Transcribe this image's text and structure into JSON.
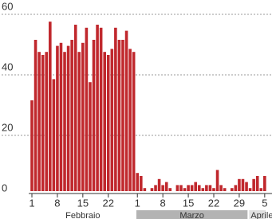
{
  "chart_data": {
    "type": "bar",
    "categories": [
      "1",
      null,
      null,
      null,
      null,
      null,
      null,
      "8",
      null,
      null,
      null,
      null,
      null,
      null,
      "15",
      null,
      null,
      null,
      null,
      null,
      null,
      "22",
      null,
      null,
      null,
      null,
      null,
      null,
      null,
      "1",
      null,
      null,
      null,
      null,
      null,
      null,
      "8",
      null,
      null,
      null,
      null,
      null,
      null,
      "15",
      null,
      null,
      null,
      null,
      null,
      null,
      "22",
      null,
      null,
      null,
      null,
      null,
      null,
      "29",
      null,
      null,
      null,
      null,
      null,
      null,
      "5"
    ],
    "values": [
      30,
      50,
      46,
      45,
      46,
      56,
      37,
      48,
      49,
      46,
      48,
      50,
      55,
      46,
      49,
      54,
      36,
      50,
      55,
      54,
      46,
      45,
      47,
      54,
      50,
      50,
      53,
      47,
      46,
      6,
      5,
      1,
      0,
      1,
      2,
      4,
      2,
      3,
      1,
      0,
      2,
      2,
      1,
      2,
      2,
      3,
      2,
      1,
      2,
      2,
      1,
      7,
      2,
      1,
      0,
      1,
      2,
      4,
      4,
      3,
      1,
      4,
      5,
      1,
      5
    ],
    "color": "#c0282d",
    "months": [
      "Febbraio",
      "Marzo",
      "Aprile"
    ],
    "ylim": [
      0,
      60
    ],
    "yticks": [
      0,
      20,
      40,
      60
    ],
    "grid": true
  }
}
